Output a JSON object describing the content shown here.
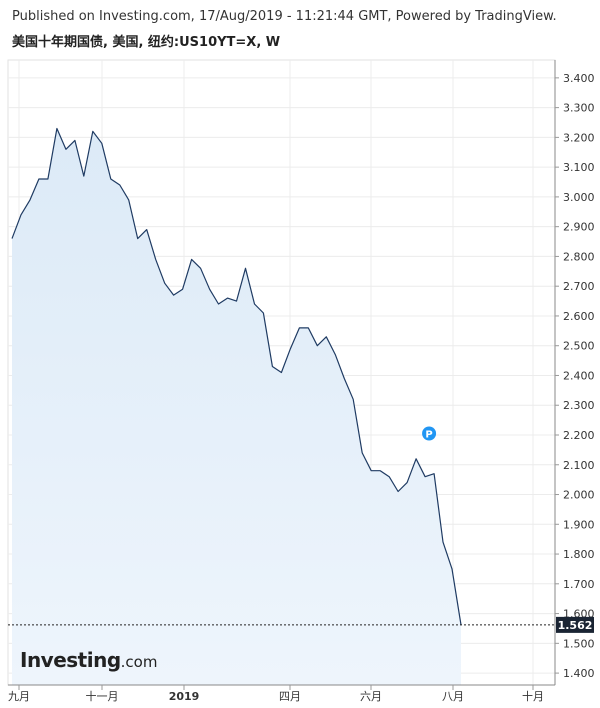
{
  "header": {
    "published": "Published on Investing.com, 17/Aug/2019 - 11:21:44 GMT, Powered by TradingView.",
    "subtitle": "美国十年期国债, 美国, 纽约:US10YT=X, W"
  },
  "logo": {
    "main": "Investing",
    "suffix": ".com"
  },
  "colors": {
    "line": "#1f3b63",
    "area_top": "#dceaf7",
    "area_bottom": "#eef5fc",
    "grid": "#ececec",
    "price_tag": "#1a2433",
    "marker": "#2196f3"
  },
  "marker_label": "P",
  "chart_data": {
    "type": "area",
    "title": "",
    "xlabel": "",
    "ylabel": "",
    "ylim": [
      1.36,
      3.46
    ],
    "yticks": [
      "3.400",
      "3.300",
      "3.200",
      "3.100",
      "3.000",
      "2.900",
      "2.800",
      "2.700",
      "2.600",
      "2.500",
      "2.400",
      "2.300",
      "2.200",
      "2.100",
      "2.000",
      "1.900",
      "1.800",
      "1.700",
      "1.600",
      "1.500",
      "1.400"
    ],
    "xticks": [
      "九月",
      "十一月",
      "2019",
      "四月",
      "六月",
      "八月",
      "十月"
    ],
    "last_value": 1.562,
    "last_value_label": "1.562",
    "marker": {
      "index": 46,
      "y": 2.205
    },
    "values": [
      2.86,
      2.94,
      2.99,
      3.06,
      3.06,
      3.23,
      3.16,
      3.19,
      3.07,
      3.22,
      3.18,
      3.06,
      3.04,
      2.99,
      2.86,
      2.89,
      2.79,
      2.71,
      2.67,
      2.69,
      2.79,
      2.76,
      2.69,
      2.64,
      2.66,
      2.65,
      2.76,
      2.64,
      2.61,
      2.43,
      2.41,
      2.49,
      2.56,
      2.56,
      2.5,
      2.53,
      2.47,
      2.39,
      2.32,
      2.14,
      2.08,
      2.08,
      2.06,
      2.01,
      2.04,
      2.12,
      2.06,
      2.07,
      1.84,
      1.75,
      1.562
    ]
  }
}
